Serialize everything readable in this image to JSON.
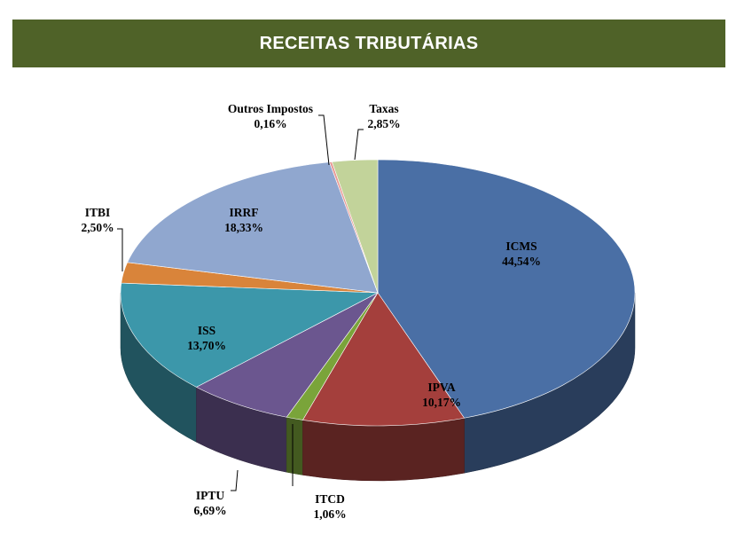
{
  "header": {
    "title": "RECEITAS TRIBUTÁRIAS"
  },
  "colors": {
    "header_bg": "#4f6228",
    "ICMS": "#4a6fa5",
    "IPVA": "#a43f3c",
    "ITCD": "#7aa43a",
    "IPTU": "#6b568f",
    "ISS": "#3c97aa",
    "ITBI": "#d9843a",
    "IRRF": "#90a7cf",
    "Outros Impostos": "#e89a95",
    "Taxas": "#c2d39a"
  },
  "chart_data": {
    "type": "pie",
    "title": "RECEITAS TRIBUTÁRIAS",
    "three_d": true,
    "slices": [
      {
        "label": "ICMS",
        "value": 44.54,
        "display": "44,54%"
      },
      {
        "label": "IPVA",
        "value": 10.17,
        "display": "10,17%"
      },
      {
        "label": "ITCD",
        "value": 1.06,
        "display": "1,06%"
      },
      {
        "label": "IPTU",
        "value": 6.69,
        "display": "6,69%"
      },
      {
        "label": "ISS",
        "value": 13.7,
        "display": "13,70%"
      },
      {
        "label": "ITBI",
        "value": 2.5,
        "display": "2,50%"
      },
      {
        "label": "IRRF",
        "value": 18.33,
        "display": "18,33%"
      },
      {
        "label": "Outros Impostos",
        "value": 0.16,
        "display": "0,16%"
      },
      {
        "label": "Taxas",
        "value": 2.85,
        "display": "2,85%"
      }
    ]
  }
}
